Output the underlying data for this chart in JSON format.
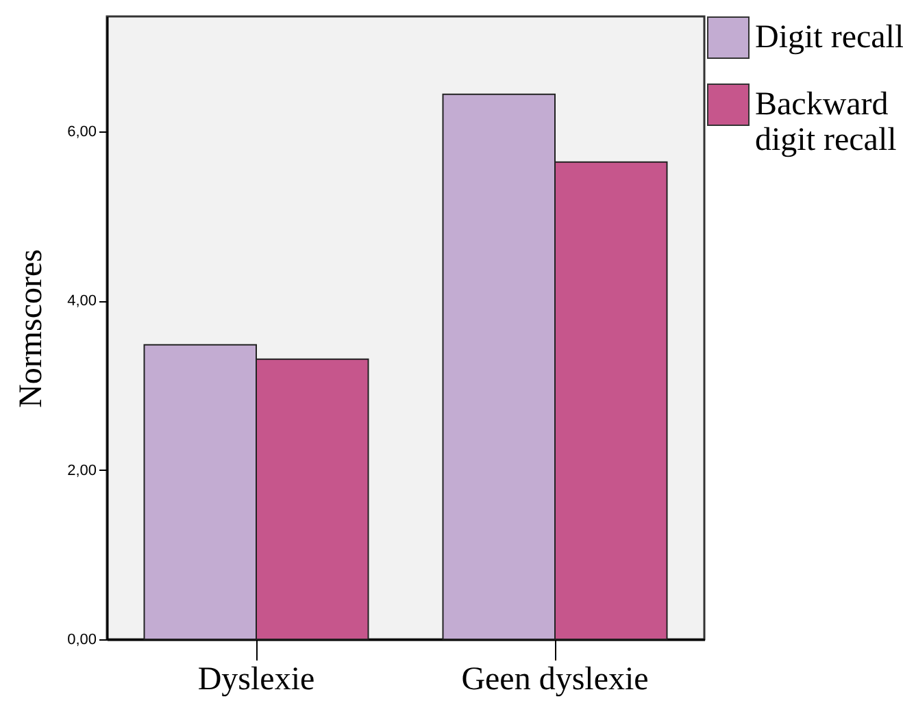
{
  "chart_data": {
    "type": "bar",
    "ylabel": "Normscores",
    "categories": [
      "Dyslexie",
      "Geen dyslexie"
    ],
    "series": [
      {
        "name": "Digit recall",
        "color": "#c3acd2",
        "values": [
          3.48,
          6.44
        ]
      },
      {
        "name": "Backward digit recall",
        "color": "#c6568c",
        "values": [
          3.31,
          5.64
        ]
      }
    ],
    "ylim": [
      0,
      7.36
    ],
    "yticks": [
      {
        "value": 0,
        "label": "0,00"
      },
      {
        "value": 2,
        "label": "2,00"
      },
      {
        "value": 4,
        "label": "4,00"
      },
      {
        "value": 6,
        "label": "6,00"
      }
    ],
    "grid": false,
    "legend": "top right"
  }
}
